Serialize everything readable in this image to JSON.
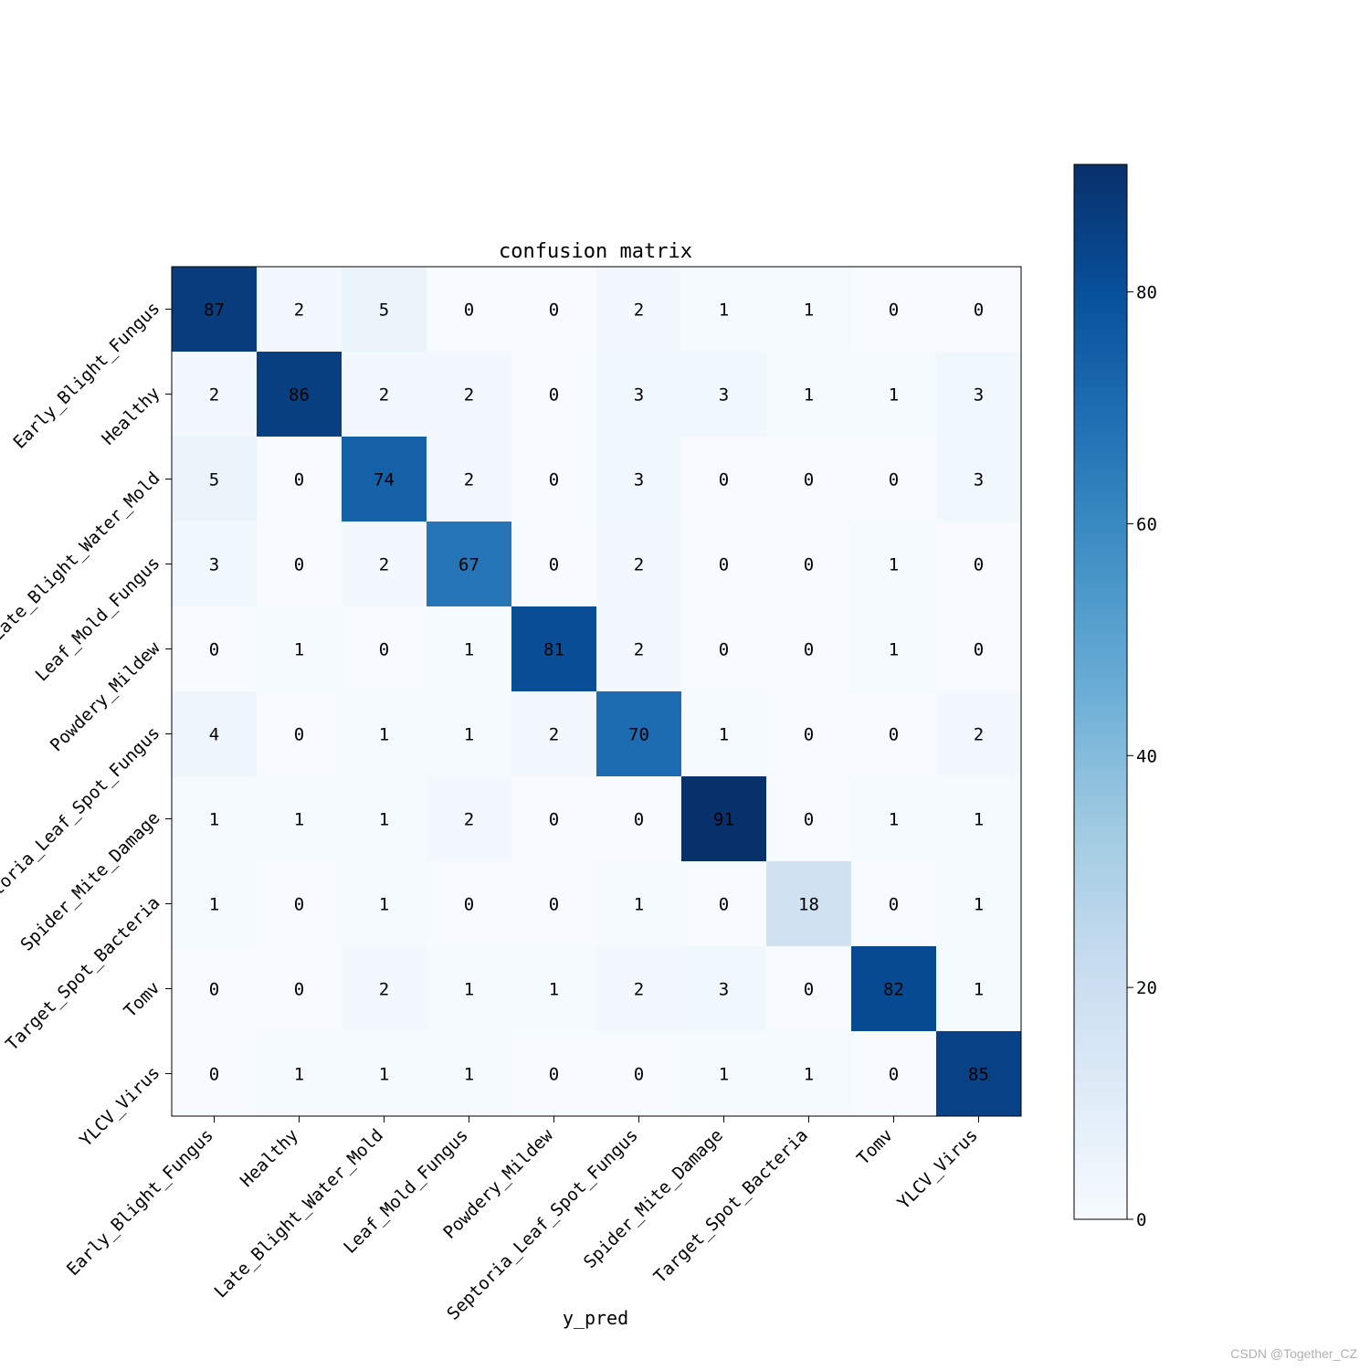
{
  "chart_data": {
    "type": "heatmap",
    "title": "confusion matrix",
    "xlabel": "y_pred",
    "ylabel": "",
    "x_categories": [
      "Early_Blight_Fungus",
      "Healthy",
      "Late_Blight_Water_Mold",
      "Leaf_Mold_Fungus",
      "Powdery_Mildew",
      "Septoria_Leaf_Spot_Fungus",
      "Spider_Mite_Damage",
      "Target_Spot_Bacteria",
      "Tomv",
      "YLCV_Virus"
    ],
    "y_categories": [
      "Early_Blight_Fungus",
      "Healthy",
      "Late_Blight_Water_Mold",
      "Leaf_Mold_Fungus",
      "Powdery_Mildew",
      "Septoria_Leaf_Spot_Fungus",
      "Spider_Mite_Damage",
      "Target_Spot_Bacteria",
      "Tomv",
      "YLCV_Virus"
    ],
    "values": [
      [
        87,
        2,
        5,
        0,
        0,
        2,
        1,
        1,
        0,
        0
      ],
      [
        2,
        86,
        2,
        2,
        0,
        3,
        3,
        1,
        1,
        3
      ],
      [
        5,
        0,
        74,
        2,
        0,
        3,
        0,
        0,
        0,
        3
      ],
      [
        3,
        0,
        2,
        67,
        0,
        2,
        0,
        0,
        1,
        0
      ],
      [
        0,
        1,
        0,
        1,
        81,
        2,
        0,
        0,
        1,
        0
      ],
      [
        4,
        0,
        1,
        1,
        2,
        70,
        1,
        0,
        0,
        2
      ],
      [
        1,
        1,
        1,
        2,
        0,
        0,
        91,
        0,
        1,
        1
      ],
      [
        1,
        0,
        1,
        0,
        0,
        1,
        0,
        18,
        0,
        1
      ],
      [
        0,
        0,
        2,
        1,
        1,
        2,
        3,
        0,
        82,
        1
      ],
      [
        0,
        1,
        1,
        1,
        0,
        0,
        1,
        1,
        0,
        85
      ]
    ],
    "colormap": "Blues",
    "color_range": [
      0,
      91
    ],
    "colorbar_ticks": [
      0,
      20,
      40,
      60,
      80
    ],
    "grid": false
  },
  "watermark": "CSDN @Together_CZ"
}
